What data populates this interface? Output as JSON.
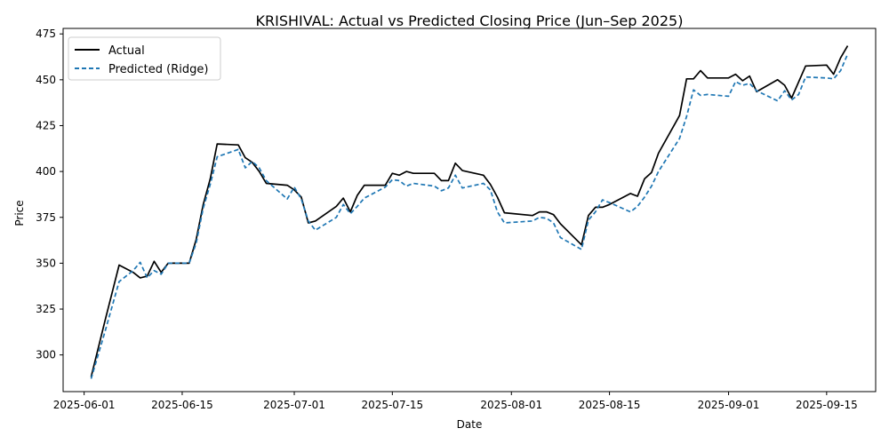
{
  "chart_data": {
    "type": "line",
    "title": "KRISHIVAL: Actual vs Predicted Closing Price (Jun–Sep 2025)",
    "xlabel": "Date",
    "ylabel": "Price",
    "xlim": [
      "2025-05-29",
      "2025-09-22"
    ],
    "ylim": [
      280,
      478
    ],
    "grid": false,
    "legend_position": "upper left",
    "x_ticks": [
      "2025-06-01",
      "2025-06-15",
      "2025-07-01",
      "2025-07-15",
      "2025-08-01",
      "2025-08-15",
      "2025-09-01",
      "2025-09-15"
    ],
    "y_ticks": [
      300,
      325,
      350,
      375,
      400,
      425,
      450,
      475
    ],
    "series": [
      {
        "name": "Actual",
        "color": "#000000",
        "style": "solid",
        "points": [
          [
            "2025-06-02",
            288
          ],
          [
            "2025-06-04",
            319
          ],
          [
            "2025-06-06",
            349
          ],
          [
            "2025-06-08",
            345
          ],
          [
            "2025-06-09",
            342
          ],
          [
            "2025-06-10",
            343
          ],
          [
            "2025-06-11",
            351
          ],
          [
            "2025-06-12",
            345
          ],
          [
            "2025-06-13",
            350
          ],
          [
            "2025-06-15",
            350
          ],
          [
            "2025-06-16",
            350
          ],
          [
            "2025-06-17",
            363
          ],
          [
            "2025-06-18",
            382
          ],
          [
            "2025-06-19",
            396
          ],
          [
            "2025-06-20",
            415
          ],
          [
            "2025-06-23",
            414.5
          ],
          [
            "2025-06-24",
            407.5
          ],
          [
            "2025-06-25",
            405
          ],
          [
            "2025-06-26",
            400
          ],
          [
            "2025-06-27",
            393.5
          ],
          [
            "2025-06-30",
            392.5
          ],
          [
            "2025-07-01",
            390
          ],
          [
            "2025-07-02",
            386
          ],
          [
            "2025-07-03",
            372
          ],
          [
            "2025-07-04",
            373
          ],
          [
            "2025-07-07",
            381
          ],
          [
            "2025-07-08",
            385.5
          ],
          [
            "2025-07-09",
            378
          ],
          [
            "2025-07-10",
            387
          ],
          [
            "2025-07-11",
            392.5
          ],
          [
            "2025-07-14",
            392.5
          ],
          [
            "2025-07-15",
            399
          ],
          [
            "2025-07-16",
            398
          ],
          [
            "2025-07-17",
            400
          ],
          [
            "2025-07-18",
            399
          ],
          [
            "2025-07-21",
            399
          ],
          [
            "2025-07-22",
            395
          ],
          [
            "2025-07-23",
            395
          ],
          [
            "2025-07-24",
            404.5
          ],
          [
            "2025-07-25",
            400.5
          ],
          [
            "2025-07-28",
            398
          ],
          [
            "2025-07-29",
            393
          ],
          [
            "2025-07-30",
            386
          ],
          [
            "2025-07-31",
            377.5
          ],
          [
            "2025-08-04",
            376
          ],
          [
            "2025-08-05",
            378
          ],
          [
            "2025-08-06",
            378
          ],
          [
            "2025-08-07",
            376.5
          ],
          [
            "2025-08-08",
            371.5
          ],
          [
            "2025-08-11",
            360
          ],
          [
            "2025-08-12",
            376
          ],
          [
            "2025-08-13",
            380.5
          ],
          [
            "2025-08-14",
            380.5
          ],
          [
            "2025-08-15",
            382
          ],
          [
            "2025-08-18",
            388
          ],
          [
            "2025-08-19",
            386.5
          ],
          [
            "2025-08-20",
            396
          ],
          [
            "2025-08-21",
            399.5
          ],
          [
            "2025-08-22",
            410
          ],
          [
            "2025-08-25",
            430.5
          ],
          [
            "2025-08-26",
            450.5
          ],
          [
            "2025-08-27",
            450.5
          ],
          [
            "2025-08-28",
            455
          ],
          [
            "2025-08-29",
            451
          ],
          [
            "2025-09-01",
            451
          ],
          [
            "2025-09-02",
            453
          ],
          [
            "2025-09-03",
            449.5
          ],
          [
            "2025-09-04",
            452
          ],
          [
            "2025-09-05",
            443.5
          ],
          [
            "2025-09-08",
            450
          ],
          [
            "2025-09-09",
            447
          ],
          [
            "2025-09-10",
            440
          ],
          [
            "2025-09-12",
            457.5
          ],
          [
            "2025-09-15",
            458
          ],
          [
            "2025-09-16",
            453
          ],
          [
            "2025-09-17",
            462
          ],
          [
            "2025-09-18",
            468.5
          ]
        ]
      },
      {
        "name": "Predicted (Ridge)",
        "color": "#1f77b4",
        "style": "dashed",
        "points": [
          [
            "2025-06-02",
            287
          ],
          [
            "2025-06-04",
            313
          ],
          [
            "2025-06-06",
            340
          ],
          [
            "2025-06-08",
            346
          ],
          [
            "2025-06-09",
            350.5
          ],
          [
            "2025-06-10",
            342
          ],
          [
            "2025-06-11",
            346
          ],
          [
            "2025-06-12",
            344
          ],
          [
            "2025-06-13",
            350
          ],
          [
            "2025-06-15",
            350
          ],
          [
            "2025-06-16",
            350
          ],
          [
            "2025-06-17",
            361
          ],
          [
            "2025-06-18",
            380
          ],
          [
            "2025-06-19",
            393
          ],
          [
            "2025-06-20",
            408
          ],
          [
            "2025-06-23",
            412
          ],
          [
            "2025-06-24",
            402
          ],
          [
            "2025-06-25",
            405.5
          ],
          [
            "2025-06-26",
            402
          ],
          [
            "2025-06-27",
            395
          ],
          [
            "2025-06-30",
            385
          ],
          [
            "2025-07-01",
            391.5
          ],
          [
            "2025-07-02",
            385
          ],
          [
            "2025-07-03",
            373
          ],
          [
            "2025-07-04",
            368
          ],
          [
            "2025-07-07",
            375
          ],
          [
            "2025-07-08",
            382
          ],
          [
            "2025-07-09",
            377
          ],
          [
            "2025-07-10",
            381
          ],
          [
            "2025-07-11",
            385.5
          ],
          [
            "2025-07-14",
            391.5
          ],
          [
            "2025-07-15",
            395.5
          ],
          [
            "2025-07-16",
            395
          ],
          [
            "2025-07-17",
            392
          ],
          [
            "2025-07-18",
            393.5
          ],
          [
            "2025-07-21",
            392
          ],
          [
            "2025-07-22",
            389.5
          ],
          [
            "2025-07-23",
            391
          ],
          [
            "2025-07-24",
            398
          ],
          [
            "2025-07-25",
            391
          ],
          [
            "2025-07-28",
            393.5
          ],
          [
            "2025-07-29",
            390
          ],
          [
            "2025-07-30",
            378
          ],
          [
            "2025-07-31",
            372
          ],
          [
            "2025-08-04",
            373
          ],
          [
            "2025-08-05",
            375
          ],
          [
            "2025-08-06",
            374.5
          ],
          [
            "2025-08-07",
            372
          ],
          [
            "2025-08-08",
            364
          ],
          [
            "2025-08-11",
            357.5
          ],
          [
            "2025-08-12",
            373.5
          ],
          [
            "2025-08-13",
            378
          ],
          [
            "2025-08-14",
            384.5
          ],
          [
            "2025-08-15",
            383
          ],
          [
            "2025-08-18",
            378
          ],
          [
            "2025-08-19",
            381
          ],
          [
            "2025-08-20",
            386
          ],
          [
            "2025-08-21",
            392
          ],
          [
            "2025-08-22",
            400
          ],
          [
            "2025-08-25",
            418
          ],
          [
            "2025-08-26",
            430
          ],
          [
            "2025-08-27",
            444.5
          ],
          [
            "2025-08-28",
            441.5
          ],
          [
            "2025-08-29",
            442
          ],
          [
            "2025-09-01",
            441
          ],
          [
            "2025-09-02",
            449
          ],
          [
            "2025-09-03",
            447
          ],
          [
            "2025-09-04",
            448
          ],
          [
            "2025-09-05",
            444
          ],
          [
            "2025-09-08",
            438.5
          ],
          [
            "2025-09-09",
            444
          ],
          [
            "2025-09-10",
            439
          ],
          [
            "2025-09-11",
            442
          ],
          [
            "2025-09-12",
            451.5
          ],
          [
            "2025-09-15",
            451
          ],
          [
            "2025-09-16",
            450.5
          ],
          [
            "2025-09-17",
            455
          ],
          [
            "2025-09-18",
            464
          ]
        ]
      }
    ]
  }
}
